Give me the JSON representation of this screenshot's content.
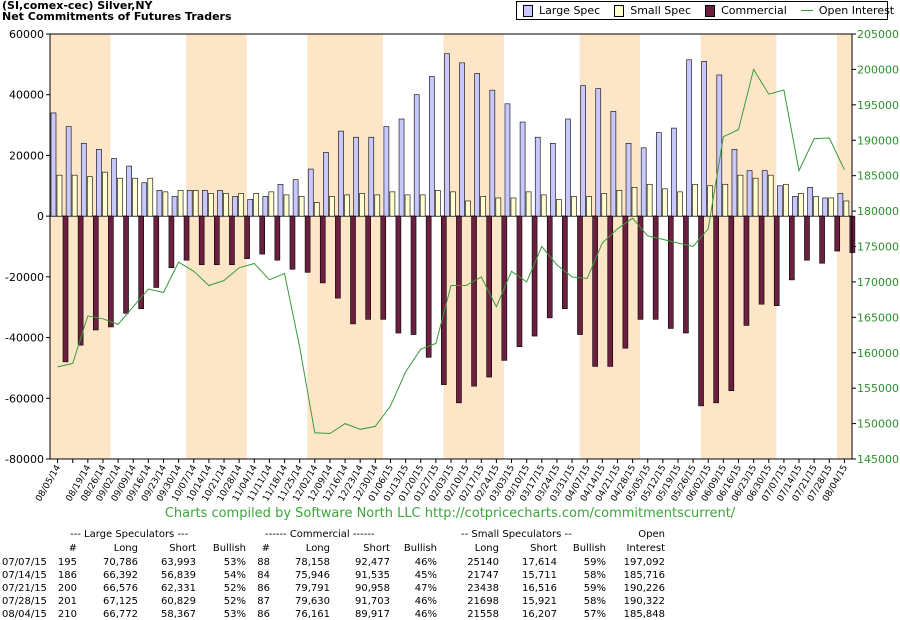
{
  "header": {
    "title_line1": "(SI,comex-cec) Silver,NY",
    "title_line2": "Net Commitments of Futures Traders"
  },
  "legend": [
    {
      "label": "Large Spec",
      "color": "#c8c8ff"
    },
    {
      "label": "Small Spec",
      "color": "#ffffd0"
    },
    {
      "label": "Commercial",
      "color": "#6b2040"
    },
    {
      "label": "Open Interest",
      "color": "#3a9a3a"
    }
  ],
  "credit": "Charts compiled by Software North LLC  http://cotpricecharts.com/commitmentscurrent/",
  "chart_data": {
    "type": "bar",
    "left_axis": {
      "min": -80000,
      "max": 60000,
      "ticks": [
        "60000",
        "40000",
        "20000",
        "0",
        "-20000",
        "-40000",
        "-60000",
        "-80000"
      ]
    },
    "right_axis": {
      "min": 145000,
      "max": 205000,
      "ticks": [
        "205000",
        "200000",
        "195000",
        "190000",
        "185000",
        "180000",
        "175000",
        "170000",
        "165000",
        "160000",
        "155000",
        "150000",
        "145000"
      ]
    },
    "categories": [
      "08/05/14",
      "08/12/14",
      "08/19/14",
      "08/26/14",
      "09/02/14",
      "09/09/14",
      "09/16/14",
      "09/23/14",
      "09/30/14",
      "10/07/14",
      "10/14/14",
      "10/21/14",
      "10/28/14",
      "11/04/14",
      "11/11/14",
      "11/18/14",
      "11/25/14",
      "12/02/14",
      "12/09/14",
      "12/16/14",
      "12/23/14",
      "12/30/14",
      "01/06/15",
      "01/13/15",
      "01/20/15",
      "01/27/15",
      "02/03/15",
      "02/10/15",
      "02/17/15",
      "02/24/15",
      "03/03/15",
      "03/10/15",
      "03/17/15",
      "03/24/15",
      "03/31/15",
      "04/07/15",
      "04/14/15",
      "04/21/15",
      "04/28/15",
      "05/05/15",
      "05/12/15",
      "05/19/15",
      "05/26/15",
      "06/02/15",
      "06/09/15",
      "06/16/15",
      "06/23/15",
      "06/30/15",
      "07/07/15",
      "07/14/15",
      "07/21/15",
      "07/28/15",
      "08/04/15"
    ],
    "x_labels": [
      "08/05/14",
      "08/19/14",
      "08/26/14",
      "09/02/14",
      "09/09/14",
      "09/16/14",
      "09/23/14",
      "09/30/14",
      "10/07/14",
      "10/14/14",
      "10/21/14",
      "10/28/14",
      "11/04/14",
      "11/11/14",
      "11/18/14",
      "11/25/14",
      "12/02/14",
      "12/09/14",
      "12/16/14",
      "12/23/14",
      "12/30/14",
      "01/06/15",
      "01/13/15",
      "01/20/15",
      "01/27/15",
      "02/03/15",
      "02/10/15",
      "02/17/15",
      "02/24/15",
      "03/03/15",
      "03/10/15",
      "03/17/15",
      "03/24/15",
      "03/31/15",
      "04/07/15",
      "04/14/15",
      "04/21/15",
      "04/28/15",
      "05/05/15",
      "05/12/15",
      "05/19/15",
      "05/26/15",
      "06/02/15",
      "06/09/15",
      "06/16/15",
      "06/23/15",
      "06/30/15",
      "07/07/15",
      "07/14/15",
      "07/21/15",
      "07/28/15",
      "08/04/15"
    ],
    "series": [
      {
        "name": "Large Spec",
        "values": [
          34000,
          29500,
          24000,
          22000,
          19000,
          16500,
          11000,
          8500,
          6500,
          8500,
          8500,
          8500,
          6500,
          5500,
          6500,
          10500,
          12000,
          15500,
          21000,
          28000,
          26000,
          26000,
          29500,
          32000,
          40000,
          46000,
          53500,
          50500,
          47000,
          41500,
          37000,
          31000,
          26000,
          24000,
          32000,
          43000,
          42000,
          34500,
          24000,
          22500,
          27500,
          29000,
          51500,
          51000,
          46500,
          22000,
          15000,
          15000,
          10000,
          6500,
          9500,
          6000,
          7500
        ]
      },
      {
        "name": "Small Spec",
        "values": [
          13500,
          13500,
          13000,
          14500,
          12500,
          12500,
          12500,
          8000,
          8500,
          8500,
          7500,
          7500,
          7500,
          7500,
          8000,
          7000,
          6500,
          4500,
          6500,
          7000,
          7500,
          7000,
          8000,
          7000,
          7000,
          8500,
          8000,
          5000,
          6500,
          6000,
          6000,
          8000,
          7000,
          5500,
          6500,
          6500,
          7500,
          8500,
          9500,
          10500,
          9000,
          8000,
          10500,
          10000,
          10500,
          13500,
          12500,
          13500,
          10500,
          7500,
          6500,
          6000,
          5000
        ]
      },
      {
        "name": "Commercial",
        "values": [
          -48000,
          -42500,
          -37500,
          -36500,
          -32000,
          -30500,
          -23500,
          -17000,
          -14500,
          -16000,
          -16000,
          -16000,
          -14000,
          -12500,
          -14500,
          -17500,
          -18500,
          -22000,
          -27000,
          -35500,
          -34000,
          -34000,
          -38500,
          -39000,
          -46500,
          -55500,
          -61500,
          -56000,
          -53000,
          -47500,
          -43000,
          -39500,
          -33500,
          -30500,
          -39000,
          -49500,
          -49500,
          -43500,
          -34000,
          -34000,
          -37000,
          -38500,
          -62500,
          -61500,
          -57500,
          -36000,
          -29000,
          -29500,
          -21000,
          -14500,
          -15500,
          -11500,
          -12000
        ]
      },
      {
        "name": "Open Interest",
        "values": [
          158000,
          158500,
          165200,
          164800,
          164000,
          166500,
          169000,
          168500,
          172800,
          171500,
          169500,
          170200,
          172000,
          172600,
          170300,
          171200,
          160800,
          148700,
          148600,
          150000,
          149200,
          149600,
          152500,
          157300,
          160500,
          161300,
          169500,
          169500,
          170700,
          166500,
          171500,
          170000,
          175000,
          172400,
          170700,
          170500,
          175500,
          177500,
          179000,
          176500,
          176000,
          175500,
          175000,
          177500,
          190500,
          191500,
          200000,
          196500,
          197092,
          185716,
          190226,
          190322,
          185848
        ]
      }
    ]
  },
  "table": {
    "group_headers": {
      "large": "--- Large Speculators ---",
      "commercial": "------ Commercial ------",
      "small": "-- Small Speculators --",
      "open": "Open"
    },
    "col_headers": {
      "num1": "#",
      "long1": "Long",
      "short1": "Short",
      "bull1": "Bullish",
      "num2": "#",
      "long2": "Long",
      "short2": "Short",
      "bull2": "Bullish",
      "long3": "Long",
      "short3": "Short",
      "bull3": "Bullish",
      "oi": "Interest"
    },
    "rows": [
      [
        "07/07/15",
        "195",
        "70,786",
        "63,993",
        "53%",
        "88",
        "78,158",
        "92,477",
        "46%",
        "25140",
        "17,614",
        "59%",
        "197,092"
      ],
      [
        "07/14/15",
        "186",
        "66,392",
        "56,839",
        "54%",
        "84",
        "75,946",
        "91,535",
        "45%",
        "21747",
        "15,711",
        "58%",
        "185,716"
      ],
      [
        "07/21/15",
        "200",
        "66,576",
        "62,331",
        "52%",
        "86",
        "79,791",
        "90,958",
        "47%",
        "23438",
        "16,516",
        "59%",
        "190,226"
      ],
      [
        "07/28/15",
        "201",
        "67,125",
        "60,829",
        "52%",
        "87",
        "79,630",
        "91,703",
        "46%",
        "21698",
        "15,921",
        "58%",
        "190,322"
      ],
      [
        "08/04/15",
        "210",
        "66,772",
        "58,367",
        "53%",
        "86",
        "76,161",
        "89,917",
        "46%",
        "21558",
        "16,207",
        "57%",
        "185,848"
      ]
    ]
  }
}
